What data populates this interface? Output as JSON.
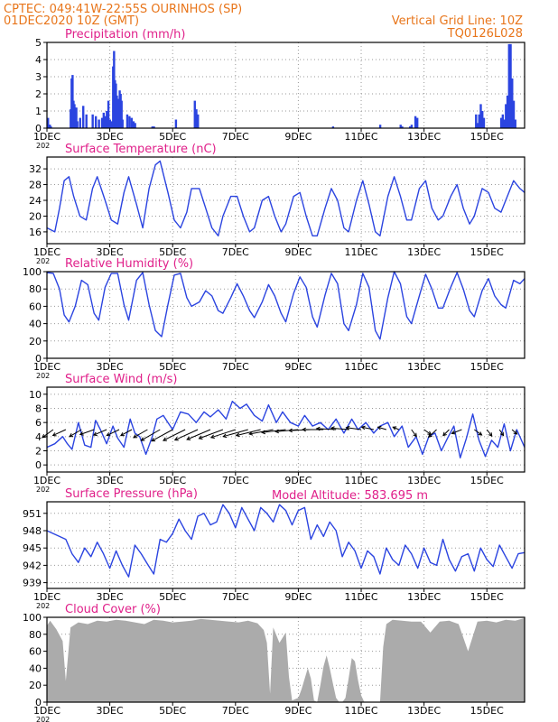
{
  "header": {
    "line1": "CPTEC:    049:41W-22:55S   OURINHOS (SP)",
    "line2": "01DEC2020  10Z (GMT)",
    "grid_note": "Vertical Grid Line: 10Z",
    "run_code": "TQ0126L028",
    "altitude_label": "Model Altitude: 583.695  m"
  },
  "colors": {
    "header": "#e8751a",
    "panel_title": "#e0208a",
    "series": "#2b44e0",
    "cloud": "#ababab",
    "frame": "#000000",
    "grid": "#9a9a9a"
  },
  "x_axis": {
    "tick_labels": [
      "1DEC",
      "3DEC",
      "5DEC",
      "7DEC",
      "9DEC",
      "11DEC",
      "13DEC",
      "15DEC"
    ],
    "tick_days": [
      1,
      3,
      5,
      7,
      9,
      11,
      13,
      15
    ],
    "x_range": [
      1,
      16.2
    ],
    "year_fragment": "202"
  },
  "chart_data": [
    {
      "id": "precip",
      "type": "bar",
      "title": "Precipitation (mm/h)",
      "ylim": [
        0,
        5
      ],
      "yticks": [
        0,
        1,
        2,
        3,
        4,
        5
      ],
      "x": [
        1.03,
        1.06,
        1.09,
        1.12,
        1.75,
        1.78,
        1.81,
        1.84,
        1.87,
        1.9,
        1.93,
        1.96,
        2.05,
        2.15,
        2.25,
        2.45,
        2.55,
        2.65,
        2.75,
        2.8,
        2.85,
        2.9,
        2.95,
        3.0,
        3.05,
        3.1,
        3.13,
        3.16,
        3.19,
        3.22,
        3.25,
        3.28,
        3.31,
        3.34,
        3.37,
        3.4,
        3.55,
        3.62,
        3.69,
        3.75,
        3.8,
        4.35,
        4.4,
        5.1,
        5.7,
        5.75,
        5.8,
        10.1,
        11.6,
        12.25,
        12.3,
        12.55,
        12.6,
        12.72,
        12.78,
        14.65,
        14.7,
        14.75,
        14.8,
        14.85,
        14.9,
        15.45,
        15.5,
        15.55,
        15.6,
        15.65,
        15.7,
        15.75,
        15.8,
        15.85,
        15.9
      ],
      "values": [
        0.6,
        0.2,
        0.2,
        0.1,
        1.1,
        2.9,
        3.1,
        1.6,
        1.4,
        1.2,
        1.2,
        0.4,
        0.6,
        1.3,
        0.8,
        0.8,
        0.7,
        0.5,
        0.6,
        0.9,
        0.7,
        1.0,
        1.6,
        0.5,
        0.4,
        3.6,
        4.5,
        2.8,
        2.6,
        1.9,
        1.7,
        1.7,
        2.2,
        2.0,
        1.6,
        0.5,
        0.8,
        0.7,
        0.6,
        0.4,
        0.3,
        0.1,
        0.1,
        0.5,
        1.6,
        1.1,
        0.8,
        0.1,
        0.2,
        0.2,
        0.1,
        0.1,
        0.2,
        0.7,
        0.6,
        0.8,
        0.3,
        0.8,
        1.4,
        1.0,
        0.6,
        0.6,
        0.8,
        0.5,
        1.4,
        1.9,
        4.9,
        4.9,
        2.9,
        1.6,
        0.5
      ]
    },
    {
      "id": "temp",
      "type": "line",
      "title": "Surface Temperature (nC)",
      "ylim": [
        13,
        35
      ],
      "yticks": [
        16,
        20,
        24,
        28,
        32
      ],
      "x": [
        1,
        1.25,
        1.4,
        1.55,
        1.7,
        1.85,
        2.05,
        2.25,
        2.45,
        2.6,
        2.85,
        3.05,
        3.25,
        3.45,
        3.6,
        3.85,
        4.05,
        4.25,
        4.45,
        4.6,
        4.85,
        5.05,
        5.25,
        5.45,
        5.6,
        5.85,
        6.05,
        6.25,
        6.45,
        6.6,
        6.85,
        7.05,
        7.25,
        7.45,
        7.6,
        7.85,
        8.05,
        8.25,
        8.45,
        8.6,
        8.85,
        9.05,
        9.25,
        9.45,
        9.6,
        9.85,
        10.05,
        10.25,
        10.45,
        10.6,
        10.85,
        11.05,
        11.25,
        11.45,
        11.6,
        11.85,
        12.05,
        12.25,
        12.45,
        12.6,
        12.85,
        13.05,
        13.25,
        13.45,
        13.6,
        13.85,
        14.05,
        14.25,
        14.45,
        14.6,
        14.85,
        15.05,
        15.25,
        15.45,
        15.6,
        15.85,
        16.05,
        16.2
      ],
      "values": [
        17,
        16,
        22,
        29,
        30,
        25,
        20,
        19,
        27,
        30,
        24,
        19,
        18,
        26,
        30,
        23,
        17,
        27,
        33,
        34,
        26,
        19,
        17,
        21,
        27,
        27,
        22,
        17,
        15,
        20,
        25,
        25,
        20,
        16,
        17,
        24,
        25,
        20,
        16,
        18,
        25,
        26,
        20,
        15,
        15,
        22,
        27,
        24,
        17,
        16,
        24,
        29,
        23,
        16,
        15,
        25,
        30,
        25,
        19,
        19,
        27,
        29,
        22,
        19,
        20,
        25,
        28,
        22,
        18,
        20,
        27,
        26,
        22,
        21,
        24,
        29,
        27,
        26
      ]
    },
    {
      "id": "rh",
      "type": "line",
      "title": "Relative Humidity (%)",
      "ylim": [
        0,
        100
      ],
      "yticks": [
        0,
        20,
        40,
        60,
        80,
        100
      ],
      "x": [
        1,
        1.2,
        1.4,
        1.55,
        1.7,
        1.9,
        2.1,
        2.3,
        2.5,
        2.65,
        2.85,
        3.05,
        3.25,
        3.45,
        3.6,
        3.85,
        4.05,
        4.25,
        4.45,
        4.65,
        4.85,
        5.05,
        5.25,
        5.45,
        5.6,
        5.85,
        6.05,
        6.25,
        6.45,
        6.6,
        6.85,
        7.05,
        7.25,
        7.45,
        7.6,
        7.85,
        8.05,
        8.25,
        8.45,
        8.6,
        8.85,
        9.05,
        9.25,
        9.45,
        9.6,
        9.85,
        10.05,
        10.25,
        10.45,
        10.6,
        10.85,
        11.05,
        11.25,
        11.45,
        11.6,
        11.85,
        12.05,
        12.25,
        12.45,
        12.6,
        12.85,
        13.05,
        13.25,
        13.45,
        13.6,
        13.85,
        14.05,
        14.25,
        14.45,
        14.6,
        14.85,
        15.05,
        15.25,
        15.45,
        15.6,
        15.85,
        16.05,
        16.2
      ],
      "values": [
        99,
        98,
        80,
        50,
        42,
        60,
        90,
        85,
        52,
        44,
        82,
        98,
        98,
        62,
        44,
        90,
        99,
        62,
        32,
        25,
        62,
        96,
        98,
        70,
        60,
        65,
        78,
        72,
        55,
        52,
        70,
        86,
        72,
        55,
        47,
        65,
        85,
        72,
        52,
        42,
        75,
        94,
        82,
        48,
        36,
        73,
        98,
        86,
        40,
        32,
        62,
        98,
        82,
        32,
        22,
        70,
        100,
        86,
        48,
        40,
        72,
        97,
        80,
        58,
        58,
        82,
        99,
        80,
        55,
        48,
        78,
        92,
        72,
        62,
        58,
        90,
        86,
        92
      ]
    },
    {
      "id": "wind",
      "type": "line",
      "title": "Surface Wind (m/s)",
      "ylim": [
        -1,
        11
      ],
      "yticks": [
        0,
        2,
        4,
        6,
        8,
        10
      ],
      "x": [
        1,
        1.25,
        1.5,
        1.65,
        1.8,
        2,
        2.2,
        2.4,
        2.55,
        2.7,
        2.9,
        3.1,
        3.25,
        3.45,
        3.65,
        3.8,
        3.95,
        4.15,
        4.35,
        4.5,
        4.7,
        4.85,
        5,
        5.25,
        5.5,
        5.75,
        6,
        6.2,
        6.45,
        6.7,
        6.9,
        7.15,
        7.35,
        7.6,
        7.85,
        8.05,
        8.3,
        8.5,
        8.75,
        9,
        9.2,
        9.45,
        9.7,
        9.95,
        10.2,
        10.45,
        10.7,
        10.9,
        11.15,
        11.4,
        11.6,
        11.85,
        12.05,
        12.3,
        12.5,
        12.75,
        12.95,
        13.15,
        13.35,
        13.55,
        13.75,
        13.95,
        14.15,
        14.35,
        14.55,
        14.75,
        14.95,
        15.15,
        15.35,
        15.55,
        15.75,
        15.95,
        16.2
      ],
      "values": [
        2.5,
        3.0,
        4.0,
        3.0,
        2.2,
        6.0,
        2.8,
        2.5,
        6.3,
        5.0,
        3.0,
        5.5,
        3.8,
        2.5,
        6.5,
        4.5,
        4.0,
        1.5,
        4.0,
        6.5,
        7.0,
        6.0,
        5.0,
        7.5,
        7.2,
        6.0,
        7.5,
        6.8,
        7.8,
        6.5,
        9.0,
        8.0,
        8.6,
        7.0,
        6.2,
        8.5,
        6.0,
        7.5,
        6.0,
        5.5,
        7.0,
        5.5,
        6.0,
        5.0,
        6.5,
        4.5,
        6.5,
        5.0,
        6.0,
        4.5,
        5.5,
        6.0,
        4.0,
        5.5,
        2.5,
        4.0,
        1.5,
        4.0,
        4.5,
        2.0,
        3.8,
        5.5,
        1.0,
        3.8,
        7.2,
        3.5,
        1.2,
        3.5,
        2.5,
        5.8,
        2.0,
        5.0,
        2.5
      ],
      "arrows": {
        "x": [
          1.2,
          1.6,
          2.1,
          2.5,
          2.9,
          3.3,
          3.7,
          4.2,
          4.6,
          5.0,
          5.4,
          5.8,
          6.2,
          6.6,
          7.0,
          7.4,
          7.8,
          8.2,
          8.6,
          9.0,
          9.4,
          9.8,
          10.2,
          10.6,
          11.0,
          11.4,
          11.8,
          12.2,
          12.6,
          13.0,
          13.4,
          13.8,
          14.2,
          14.6,
          15.0,
          15.4,
          15.8
        ],
        "u": [
          -2.2,
          -2.6,
          -2.4,
          -2.8,
          -2.6,
          -2.5,
          -2.2,
          -2.8,
          -3.8,
          -4.2,
          -4.4,
          -4.6,
          -4.7,
          -4.8,
          -4.9,
          -5.0,
          -4.9,
          -4.8,
          -4.8,
          -4.6,
          -4.4,
          -4.2,
          -3.9,
          -3.5,
          -3.0,
          -2.4,
          -1.7,
          -1.2,
          1.0,
          1.4,
          -1.6,
          -1.2,
          -2.0,
          1.5,
          1.0,
          0.8,
          1.0
        ],
        "v": [
          -1.6,
          -1.2,
          -1.4,
          -1.0,
          -1.1,
          -1.2,
          -1.2,
          -1.6,
          -2.2,
          -2.3,
          -2.2,
          -2.1,
          -2.0,
          -1.8,
          -1.6,
          -1.4,
          -1.2,
          -0.9,
          -0.6,
          -0.4,
          -0.2,
          0.0,
          0.2,
          0.3,
          0.4,
          0.5,
          0.5,
          0.5,
          -1.4,
          -1.0,
          -1.5,
          -1.2,
          -0.8,
          -1.1,
          -1.3,
          -1.2,
          -0.9
        ]
      }
    },
    {
      "id": "pressure",
      "type": "line",
      "title": "Surface Pressure (hPa)",
      "ylim": [
        938,
        953
      ],
      "yticks": [
        939,
        942,
        945,
        948,
        951
      ],
      "x": [
        1,
        1.2,
        1.4,
        1.6,
        1.8,
        2,
        2.2,
        2.4,
        2.6,
        2.8,
        3,
        3.2,
        3.4,
        3.6,
        3.8,
        4,
        4.2,
        4.4,
        4.6,
        4.8,
        5,
        5.2,
        5.4,
        5.6,
        5.8,
        6,
        6.2,
        6.4,
        6.6,
        6.8,
        7,
        7.2,
        7.4,
        7.6,
        7.8,
        8,
        8.2,
        8.4,
        8.6,
        8.8,
        9,
        9.2,
        9.4,
        9.6,
        9.8,
        10,
        10.2,
        10.4,
        10.6,
        10.8,
        11,
        11.2,
        11.4,
        11.6,
        11.8,
        12,
        12.2,
        12.4,
        12.6,
        12.8,
        13,
        13.2,
        13.4,
        13.6,
        13.8,
        14,
        14.2,
        14.4,
        14.6,
        14.8,
        15,
        15.2,
        15.4,
        15.6,
        15.8,
        16,
        16.2
      ],
      "values": [
        948,
        947.5,
        947,
        946.5,
        944,
        942.5,
        945,
        943.5,
        946,
        944,
        941.5,
        944.5,
        942,
        940,
        945.5,
        944,
        942.2,
        940.5,
        946.5,
        946,
        947.5,
        950,
        948,
        946.5,
        950.5,
        951,
        949,
        949.5,
        952.5,
        951,
        948.5,
        952,
        950,
        948,
        952,
        951,
        949.5,
        952.5,
        951.5,
        949,
        951.5,
        952,
        946.5,
        949,
        947,
        949.5,
        948,
        943.5,
        946,
        944.5,
        941.5,
        944.5,
        943.5,
        940.5,
        945,
        943,
        942,
        945.5,
        944,
        941.5,
        945,
        942.5,
        942,
        946.5,
        943,
        941,
        943.5,
        944,
        941,
        945,
        943,
        941.8,
        945.5,
        943.5,
        941.5,
        944,
        944.2
      ]
    },
    {
      "id": "cloud",
      "type": "area",
      "title": "Cloud Cover (%)",
      "ylim": [
        0,
        100
      ],
      "yticks": [
        0,
        20,
        40,
        60,
        80,
        100
      ],
      "x": [
        1,
        1.1,
        1.3,
        1.5,
        1.6,
        1.75,
        2,
        2.3,
        2.6,
        2.9,
        3.2,
        3.5,
        3.8,
        4.1,
        4.4,
        4.7,
        5,
        5.3,
        5.6,
        5.9,
        6.2,
        6.5,
        6.8,
        7.1,
        7.4,
        7.7,
        7.9,
        8,
        8.1,
        8.2,
        8.4,
        8.6,
        8.7,
        8.8,
        9,
        9.1,
        9.3,
        9.4,
        9.5,
        9.6,
        9.7,
        9.8,
        9.9,
        10,
        10.1,
        10.2,
        10.3,
        10.4,
        10.5,
        10.6,
        10.7,
        10.8,
        10.9,
        11,
        11.1,
        11.2,
        11.3,
        11.4,
        11.5,
        11.6,
        11.7,
        11.8,
        12,
        12.3,
        12.6,
        12.9,
        13.2,
        13.5,
        13.8,
        14.1,
        14.4,
        14.7,
        15,
        15.3,
        15.6,
        15.9,
        16.2
      ],
      "values": [
        90,
        96,
        86,
        72,
        25,
        88,
        94,
        92,
        96,
        95,
        97,
        96,
        94,
        92,
        97,
        96,
        94,
        95,
        96,
        98,
        97,
        96,
        95,
        94,
        96,
        93,
        85,
        70,
        10,
        88,
        70,
        82,
        30,
        2,
        5,
        15,
        40,
        28,
        2,
        0,
        20,
        42,
        55,
        40,
        22,
        5,
        0,
        0,
        5,
        28,
        52,
        48,
        26,
        8,
        0,
        0,
        0,
        0,
        0,
        0,
        65,
        92,
        97,
        96,
        95,
        95,
        82,
        95,
        96,
        92,
        60,
        95,
        96,
        94,
        97,
        96,
        99
      ]
    }
  ]
}
